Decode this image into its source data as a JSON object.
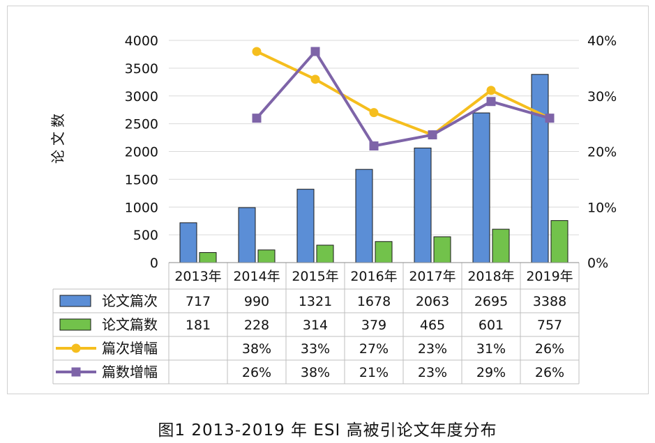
{
  "chart_data": {
    "type": "bar",
    "title": "图1 2013-2019 年 ESI 高被引论文年度分布",
    "ylabel": "论文数",
    "ylim": [
      0,
      4000
    ],
    "y_ticks": [
      "0",
      "500",
      "1000",
      "1500",
      "2000",
      "2500",
      "3000",
      "3500",
      "4000"
    ],
    "y2lim": [
      0,
      40
    ],
    "y2_ticks": [
      "0%",
      "10%",
      "20%",
      "30%",
      "40%"
    ],
    "categories": [
      "2013年",
      "2014年",
      "2015年",
      "2016年",
      "2017年",
      "2018年",
      "2019年"
    ],
    "series": [
      {
        "name": "论文篇次",
        "type": "bar",
        "color": "#5B8ED6",
        "values": [
          717,
          990,
          1321,
          1678,
          2063,
          2695,
          3388
        ],
        "table": [
          "717",
          "990",
          "1321",
          "1678",
          "2063",
          "2695",
          "3388"
        ]
      },
      {
        "name": "论文篇数",
        "type": "bar",
        "color": "#72C24B",
        "values": [
          181,
          228,
          314,
          379,
          465,
          601,
          757
        ],
        "table": [
          "181",
          "228",
          "314",
          "379",
          "465",
          "601",
          "757"
        ]
      },
      {
        "name": "篇次增幅",
        "type": "line",
        "axis": "right",
        "marker": "circle",
        "color": "#F5BE1E",
        "values": [
          null,
          38,
          33,
          27,
          23,
          31,
          26
        ],
        "table": [
          "",
          "38%",
          "33%",
          "27%",
          "23%",
          "31%",
          "26%"
        ]
      },
      {
        "name": "篇数增幅",
        "type": "line",
        "axis": "right",
        "marker": "square",
        "color": "#7E64A8",
        "values": [
          null,
          26,
          38,
          21,
          23,
          29,
          26
        ],
        "table": [
          "",
          "26%",
          "38%",
          "21%",
          "23%",
          "29%",
          "26%"
        ]
      }
    ]
  }
}
